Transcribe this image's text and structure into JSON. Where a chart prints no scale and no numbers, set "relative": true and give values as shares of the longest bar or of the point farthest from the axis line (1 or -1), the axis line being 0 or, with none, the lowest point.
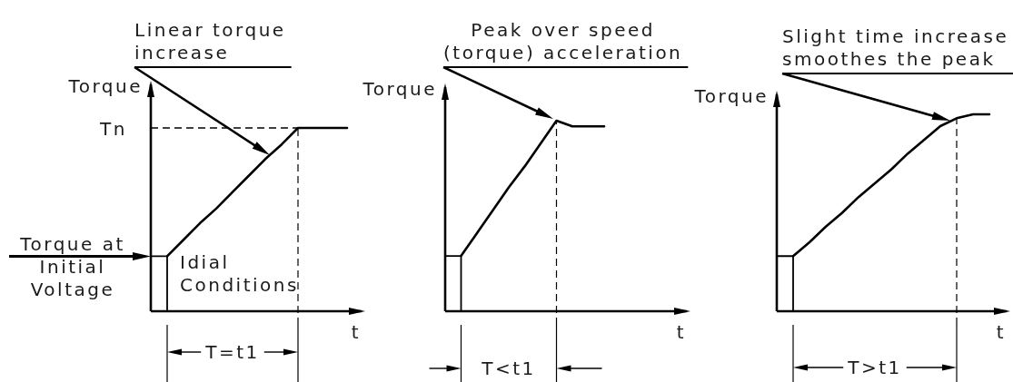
{
  "chart_data": [
    {
      "type": "line",
      "relative": true,
      "xlabel": "t",
      "ylabel": "Torque",
      "categories": [
        null,
        null,
        null,
        null,
        null,
        null,
        null,
        null,
        null,
        null,
        null,
        null,
        null
      ],
      "series": [
        {
          "color": "#000000",
          "values": [
            null,
            0.3,
            0.39,
            0.48,
            0.56,
            0.65,
            0.74,
            0.83,
            0.91,
            1,
            1,
            1,
            1
          ]
        },
        {
          "type": "step",
          "color": "#000000",
          "values": [
            0.3,
            0,
            null,
            null,
            null,
            null,
            null,
            null,
            null,
            null,
            null,
            null,
            null
          ]
        }
      ],
      "ref_lines": [
        {
          "axis": "y",
          "value": 1,
          "label": "Tn",
          "line_style": "dashed"
        }
      ],
      "annotations": [
        "Linear torque\nincrease",
        "Torque at\nInitial\nVoltage",
        "Idial\nConditions",
        "T=t1"
      ]
    },
    {
      "type": "line",
      "relative": true,
      "xlabel": "t",
      "ylabel": "Torque",
      "categories": [
        null,
        null,
        null,
        null,
        null,
        null,
        null,
        null,
        null,
        null,
        null
      ],
      "series": [
        {
          "color": "#000000",
          "values": [
            null,
            0.29,
            0.41,
            0.53,
            0.65,
            0.76,
            0.88,
            1,
            0.97,
            0.97,
            0.97
          ]
        },
        {
          "type": "step",
          "color": "#000000",
          "values": [
            0.29,
            0,
            null,
            null,
            null,
            null,
            null,
            null,
            null,
            null,
            null
          ]
        }
      ],
      "annotations": [
        "Peak over speed\n(torque) acceleration",
        "T<t1"
      ]
    },
    {
      "type": "line",
      "relative": true,
      "xlabel": "t",
      "ylabel": "Torque",
      "categories": [
        null,
        null,
        null,
        null,
        null,
        null,
        null,
        null,
        null,
        null,
        null,
        null,
        null,
        null
      ],
      "series": [
        {
          "color": "#000000",
          "values": [
            null,
            0.28,
            0.35,
            0.43,
            0.5,
            0.58,
            0.65,
            0.72,
            0.8,
            0.87,
            0.94,
            0.98,
            1,
            1
          ]
        },
        {
          "type": "step",
          "color": "#000000",
          "values": [
            0.28,
            0,
            null,
            null,
            null,
            null,
            null,
            null,
            null,
            null,
            null,
            null,
            null,
            null
          ]
        }
      ],
      "annotations": [
        "Slight time increase\nsmoothes the peak",
        "T>t1"
      ]
    }
  ]
}
